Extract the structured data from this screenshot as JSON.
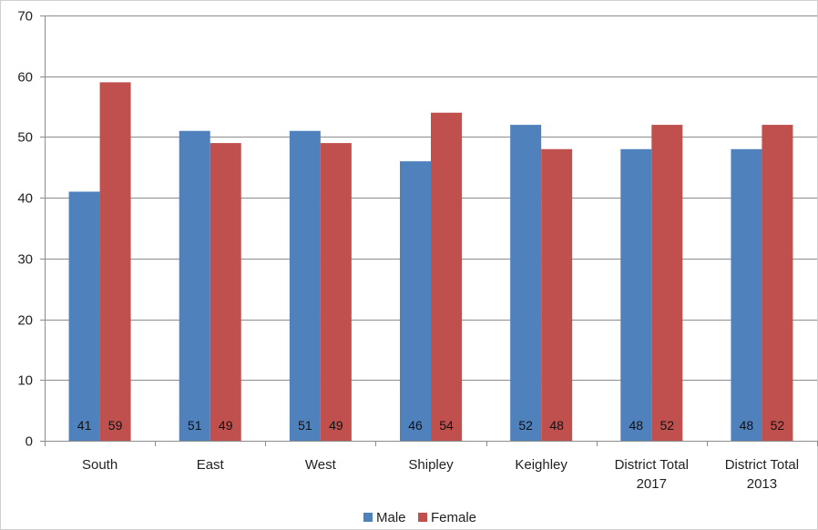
{
  "chart_data": {
    "type": "bar",
    "categories": [
      [
        "South"
      ],
      [
        "East"
      ],
      [
        "West"
      ],
      [
        "Shipley"
      ],
      [
        "Keighley"
      ],
      [
        "District Total",
        "2017"
      ],
      [
        "District Total",
        "2013"
      ]
    ],
    "series": [
      {
        "name": "Male",
        "color": "#4F81BD",
        "values": [
          41,
          51,
          51,
          46,
          52,
          48,
          48
        ]
      },
      {
        "name": "Female",
        "color": "#C0504D",
        "values": [
          59,
          49,
          49,
          54,
          48,
          52,
          52
        ]
      }
    ],
    "ylim": [
      0,
      70
    ],
    "yticks": [
      0,
      10,
      20,
      30,
      40,
      50,
      60,
      70
    ],
    "grid": true,
    "legend": "bottom",
    "data_labels": "inside-base"
  }
}
